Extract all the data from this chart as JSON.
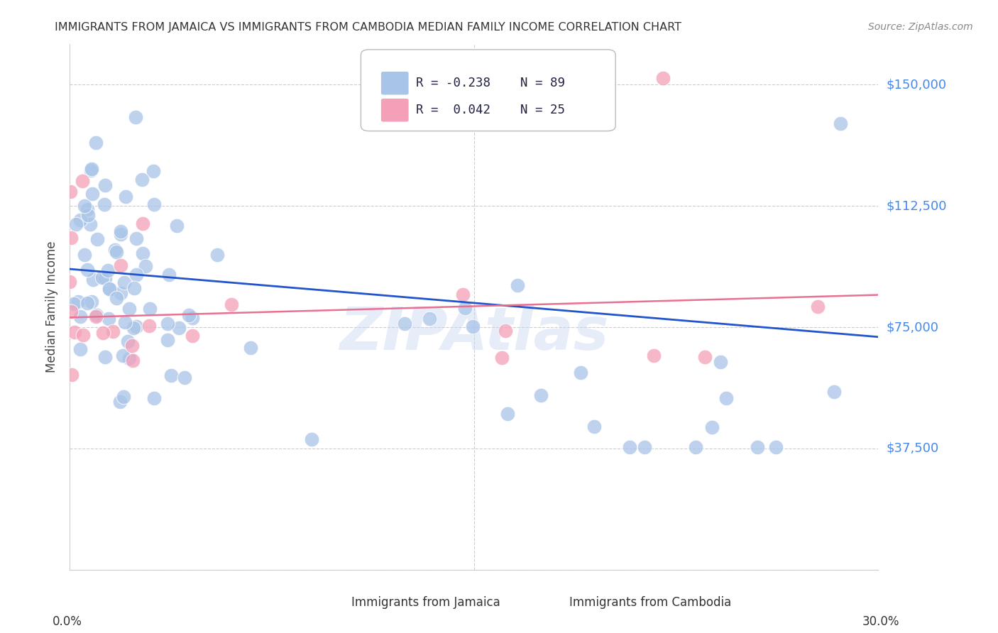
{
  "title": "IMMIGRANTS FROM JAMAICA VS IMMIGRANTS FROM CAMBODIA MEDIAN FAMILY INCOME CORRELATION CHART",
  "source": "Source: ZipAtlas.com",
  "ylabel": "Median Family Income",
  "ytick_vals": [
    37500,
    75000,
    112500,
    150000
  ],
  "ytick_labels": [
    "$37,500",
    "$75,000",
    "$112,500",
    "$150,000"
  ],
  "ylim": [
    0,
    162500
  ],
  "xlim": [
    0.0,
    0.3
  ],
  "watermark": "ZIPAtlas",
  "jamaica_color": "#a8c4e8",
  "cambodia_color": "#f4a0b8",
  "jamaica_line_color": "#2255cc",
  "cambodia_line_color": "#e87090",
  "background_color": "#ffffff",
  "grid_color": "#cccccc",
  "title_color": "#333333",
  "ytick_color": "#4488ee",
  "jamaica_trend": [
    93000,
    72000
  ],
  "cambodia_trend": [
    78000,
    85000
  ],
  "R_jamaica": "-0.238",
  "N_jamaica": "89",
  "R_cambodia": "0.042",
  "N_cambodia": "25"
}
